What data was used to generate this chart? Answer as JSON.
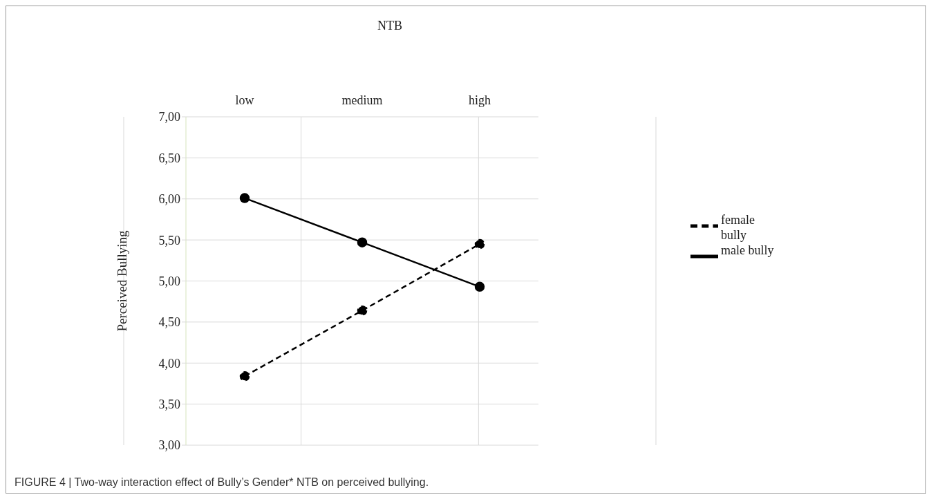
{
  "chart_data": {
    "type": "line",
    "xlabel": "NTB",
    "ylabel": "Perceived Bullying",
    "categories": [
      "low",
      "medium",
      "high"
    ],
    "series": [
      {
        "name": "male bully",
        "color": "#000000",
        "values": [
          6.01,
          5.47,
          4.93
        ],
        "line_style": "solid"
      },
      {
        "name": "female bully",
        "color": "#000000",
        "values": [
          3.84,
          4.64,
          5.45
        ],
        "line_style": "dashed"
      }
    ],
    "ylim": [
      3,
      7
    ],
    "yticks": [
      {
        "value": 3,
        "label": "3,00"
      },
      {
        "value": 3.5,
        "label": "3,50"
      },
      {
        "value": 4,
        "label": "4,00"
      },
      {
        "value": 4.5,
        "label": "4,50"
      },
      {
        "value": 5,
        "label": "5,00"
      },
      {
        "value": 5.5,
        "label": "5,50"
      },
      {
        "value": 6,
        "label": "6,00"
      },
      {
        "value": 6.5,
        "label": "6,50"
      },
      {
        "value": 7,
        "label": "7,00"
      }
    ],
    "grid": true,
    "legend": "right",
    "marker": "circle",
    "annotations": [
      "FIGURE 4 | Two-way interaction effect of Bully’s Gender* NTB on perceived bullying."
    ]
  }
}
